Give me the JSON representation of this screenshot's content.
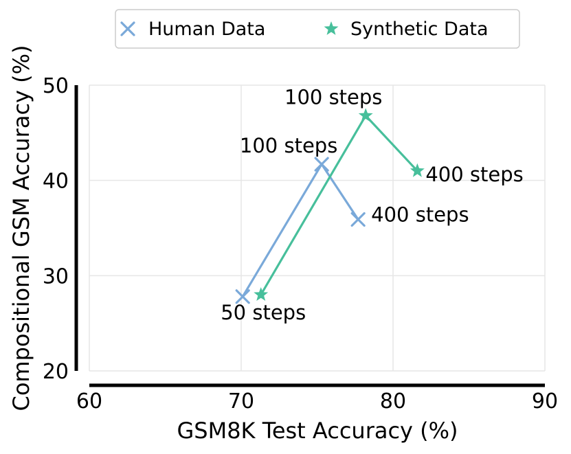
{
  "chart_data": {
    "type": "line",
    "title": "",
    "xlabel": "GSM8K Test Accuracy (%)",
    "ylabel": "Compositional GSM Accuracy (%)",
    "xlim": [
      60,
      90
    ],
    "ylim": [
      20,
      50
    ],
    "xticks": [
      60,
      70,
      80,
      90
    ],
    "yticks": [
      20,
      30,
      40,
      50
    ],
    "grid": true,
    "legend_position": "top-center",
    "series": [
      {
        "name": "Human Data",
        "marker": "x",
        "color": "#7aa9d9",
        "points": [
          {
            "x": 70.1,
            "y": 27.8
          },
          {
            "x": 75.3,
            "y": 41.7
          },
          {
            "x": 77.7,
            "y": 35.9
          }
        ]
      },
      {
        "name": "Synthetic Data",
        "marker": "star",
        "color": "#47bf9b",
        "points": [
          {
            "x": 71.3,
            "y": 28.0
          },
          {
            "x": 78.2,
            "y": 46.8
          },
          {
            "x": 81.6,
            "y": 41.0
          }
        ]
      }
    ],
    "annotations": [
      {
        "text": "50 steps"
      },
      {
        "text": "100 steps"
      },
      {
        "text": "400 steps"
      },
      {
        "text": "100 steps"
      },
      {
        "text": "400 steps"
      }
    ]
  }
}
